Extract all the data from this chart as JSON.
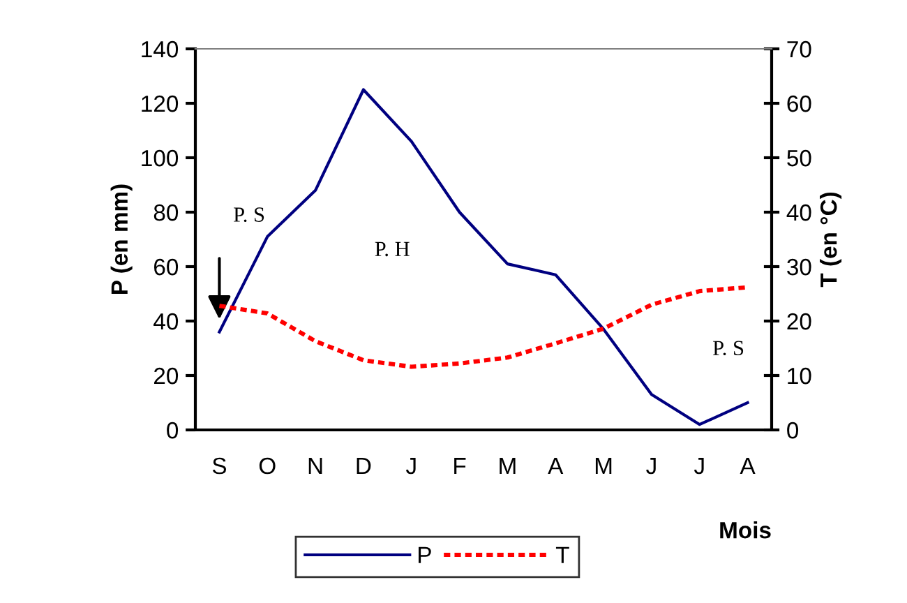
{
  "chart_data": {
    "type": "line",
    "xlabel": "Mois",
    "ylabel": "P (en mm)",
    "y2label": "T (en °C)",
    "categories": [
      "S",
      "O",
      "N",
      "D",
      "J",
      "F",
      "M",
      "A",
      "M",
      "J",
      "J",
      "A"
    ],
    "series": [
      {
        "name": "P",
        "color": "#000080",
        "line_style": "solid",
        "values": [
          36,
          71,
          88,
          125,
          106,
          80,
          61,
          57,
          37,
          13,
          2,
          10
        ]
      },
      {
        "name": "T",
        "color": "#ff0000",
        "line_style": "dotted",
        "axis": "y2",
        "values": [
          22.8,
          21.4,
          16.3,
          12.8,
          11.6,
          12.2,
          13.3,
          15.9,
          18.6,
          23,
          25.5,
          26.2
        ]
      }
    ],
    "ylim": [
      0,
      140
    ],
    "yticks": [
      0,
      20,
      40,
      60,
      80,
      100,
      120,
      140
    ],
    "y2lim": [
      0,
      70
    ],
    "y2ticks": [
      0,
      10,
      20,
      30,
      40,
      50,
      60,
      70
    ],
    "annotations": [
      "P. S",
      "P. H",
      "P. S"
    ],
    "legend": "bottom",
    "grid": false,
    "marker": "none"
  }
}
